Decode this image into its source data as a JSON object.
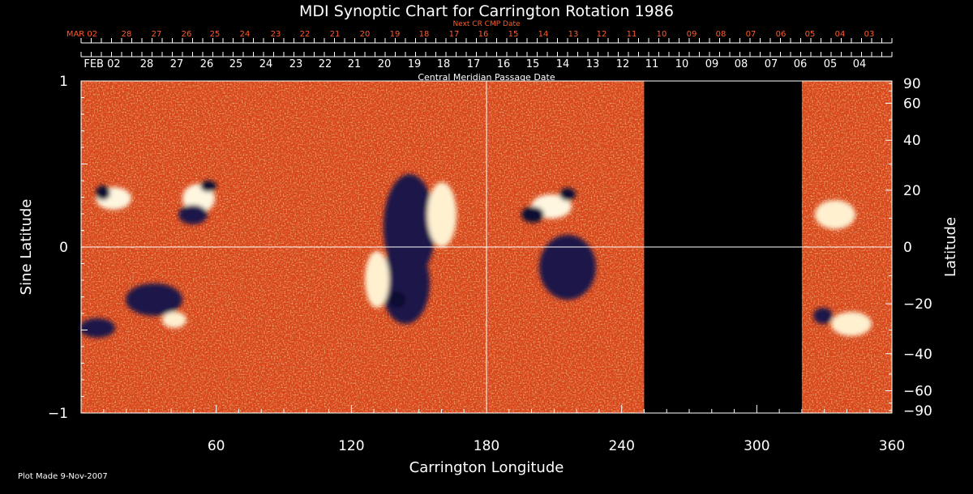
{
  "chart_data": {
    "type": "heatmap",
    "title": "MDI Synoptic Chart for Carrington Rotation 1986",
    "xlabel": "Carrington Longitude",
    "ylabel_left": "Sine Latitude",
    "ylabel_right": "Latitude",
    "xlim": [
      0,
      360
    ],
    "ylim": [
      -1,
      1
    ],
    "x_ticks": [
      60,
      120,
      180,
      240,
      300,
      360
    ],
    "y_ticks_left": [
      {
        "value": 1,
        "label": "1"
      },
      {
        "value": 0,
        "label": "0"
      },
      {
        "value": -1,
        "label": "−1"
      }
    ],
    "y_ticks_right": [
      90,
      60,
      40,
      20,
      0,
      -20,
      -40,
      -60,
      -90
    ],
    "top_axis_label": "Central Meridian Passage Date",
    "top_axis_dates": [
      "FEB 02",
      "28",
      "27",
      "26",
      "25",
      "24",
      "23",
      "22",
      "21",
      "20",
      "19",
      "18",
      "17",
      "16",
      "15",
      "14",
      "13",
      "12",
      "11",
      "10",
      "09",
      "08",
      "07",
      "06",
      "05",
      "04"
    ],
    "next_cr_label": "Next CR CMP Date",
    "next_cr_dates": [
      "MAR 02",
      "28",
      "27",
      "26",
      "25",
      "24",
      "23",
      "22",
      "21",
      "20",
      "19",
      "18",
      "17",
      "16",
      "15",
      "14",
      "13",
      "12",
      "11",
      "10",
      "09",
      "08",
      "07",
      "06",
      "05",
      "04",
      "03"
    ],
    "data_gap_longitude": [
      250,
      320
    ],
    "colors": {
      "background": "#000000",
      "field_base": "#e8501a",
      "positive": "#fff4d8",
      "negative": "#141040",
      "axis": "#ffffff",
      "next_cr": "#ff5a28"
    }
  },
  "footer": {
    "plot_made": "Plot Made  9-Nov-2007"
  }
}
